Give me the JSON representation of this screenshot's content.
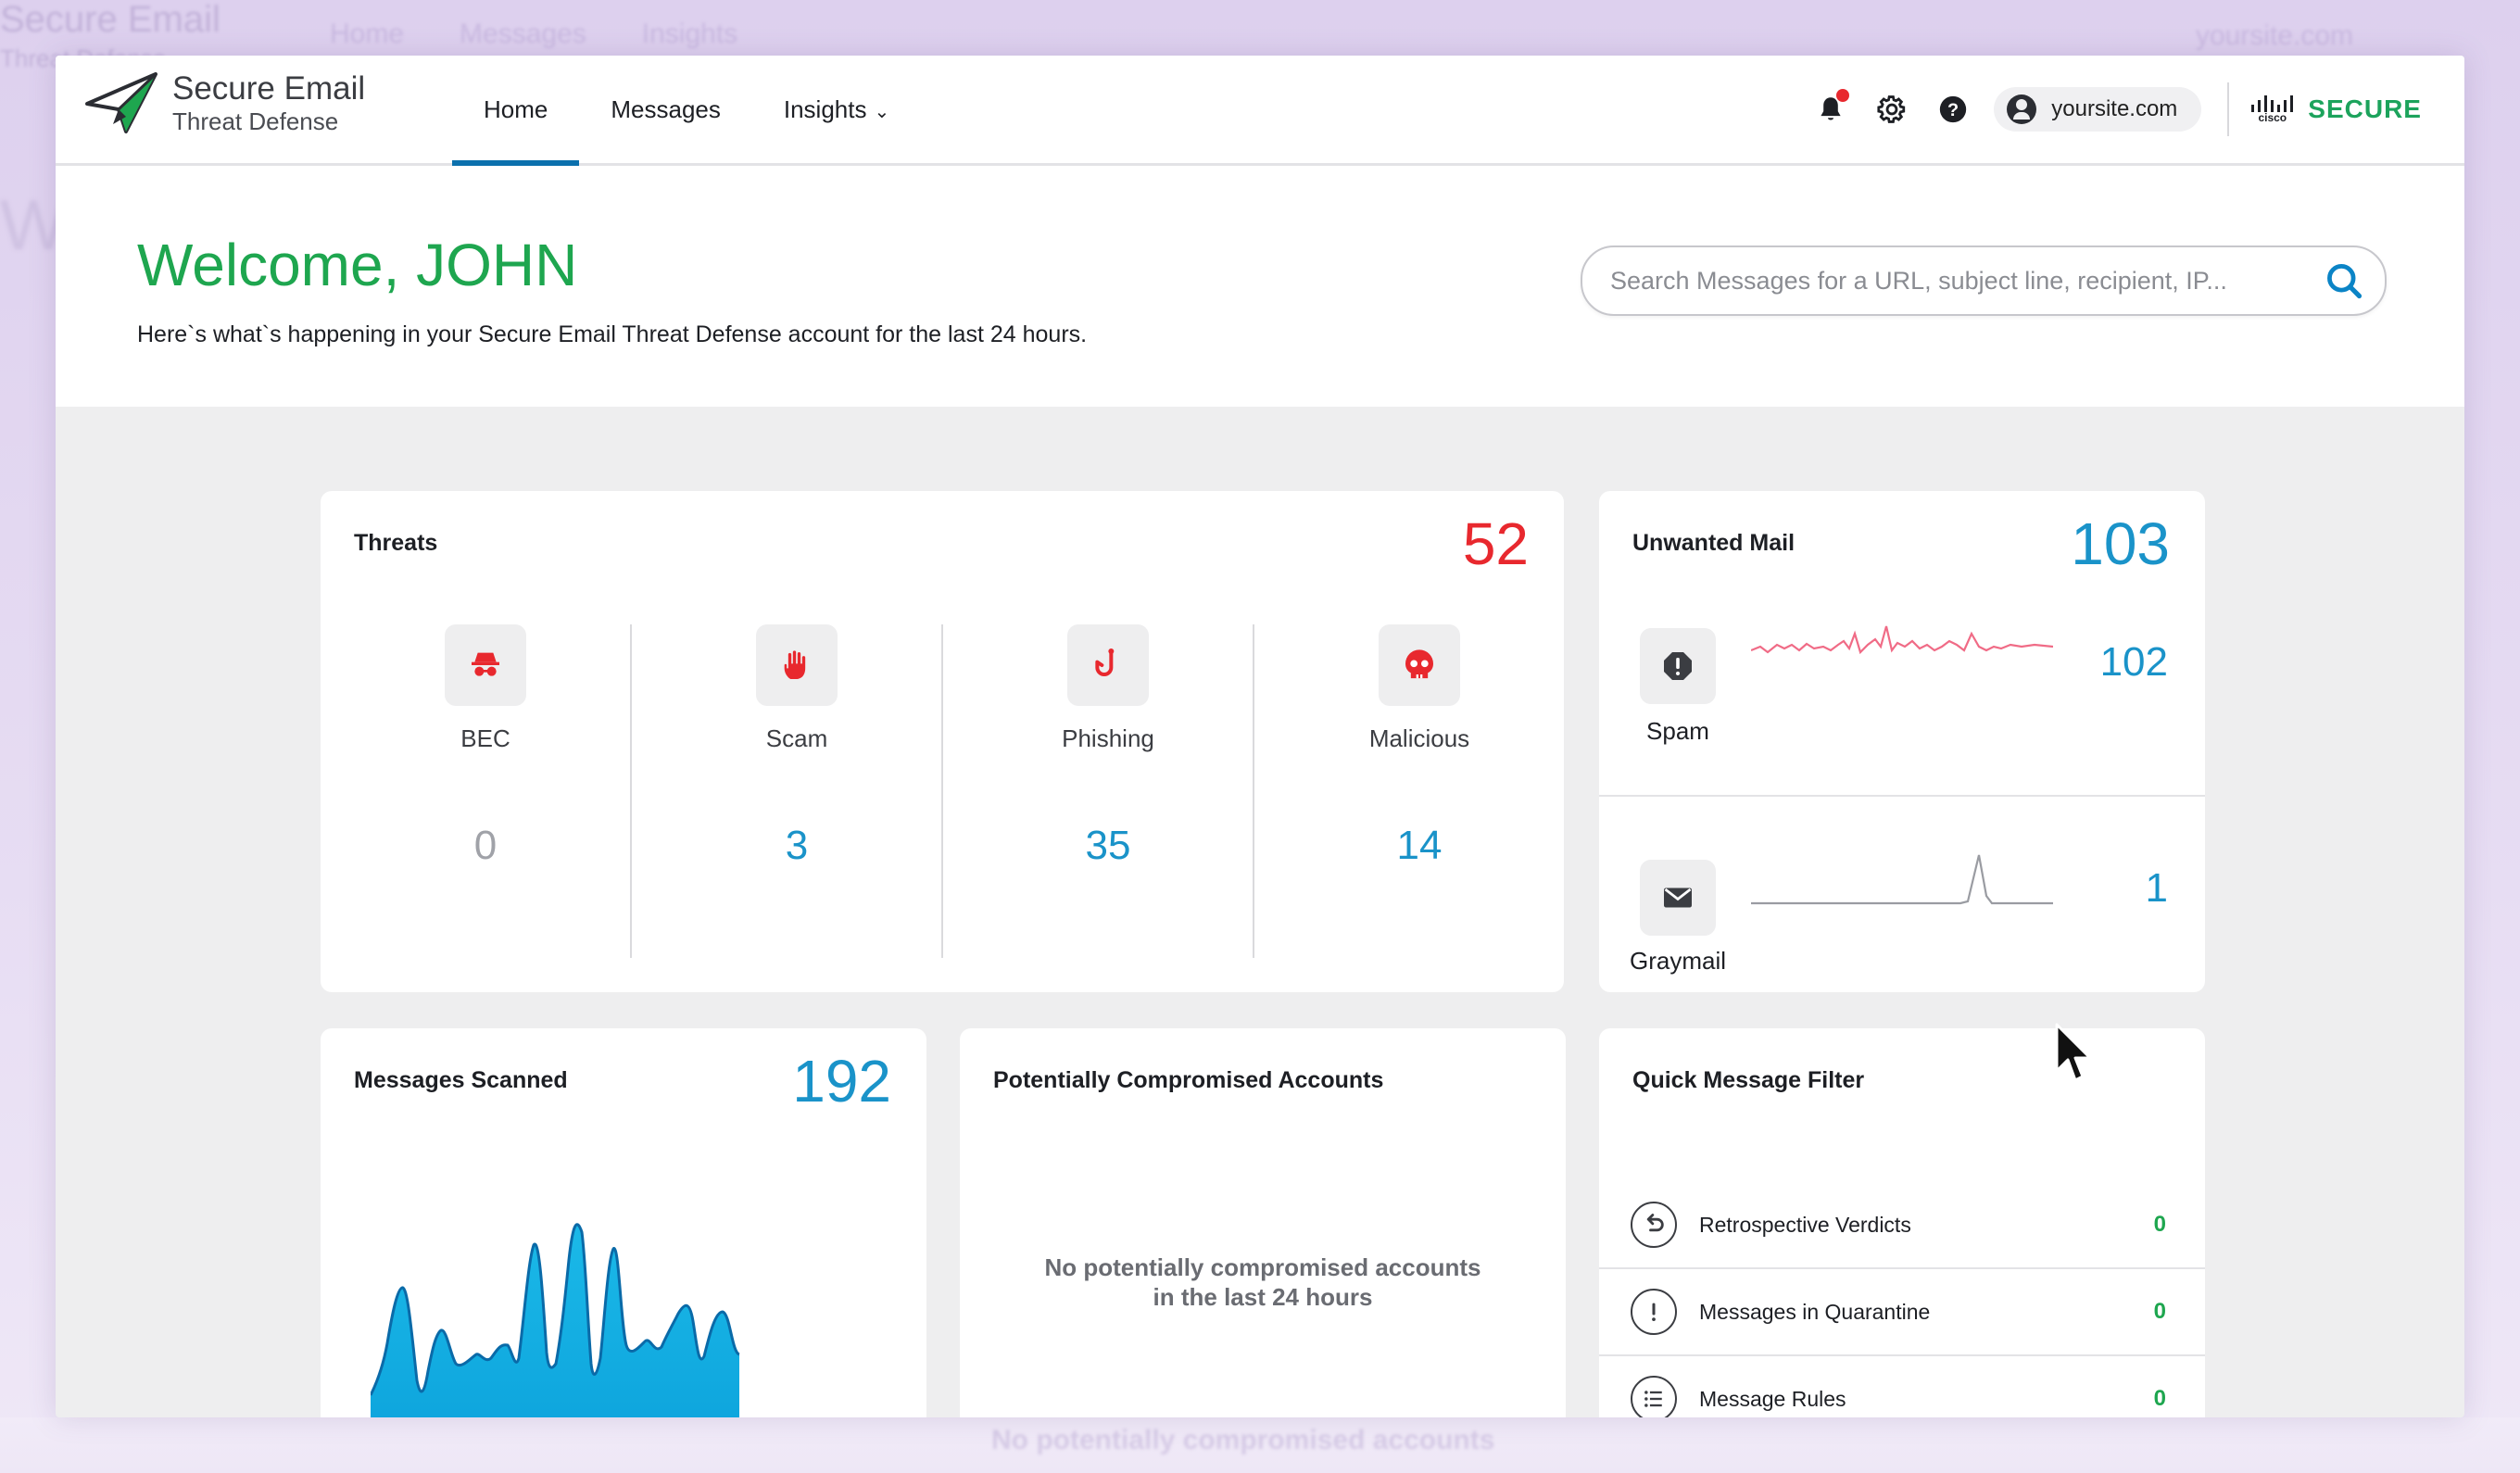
{
  "header": {
    "brand_title": "Secure Email",
    "brand_subtitle": "Threat Defense",
    "nav": [
      "Home",
      "Messages",
      "Insights"
    ],
    "active_nav": "Home",
    "domain": "yoursite.com",
    "vendor": "SECURE",
    "vendor_mark": "cisco"
  },
  "welcome": {
    "title": "Welcome, JOHN",
    "subtitle": "Here`s what`s happening in your Secure Email Threat Defense account for the last 24 hours."
  },
  "search": {
    "placeholder": "Search Messages for a URL, subject line, recipient, IP..."
  },
  "threats": {
    "title": "Threats",
    "total": "52",
    "items": [
      {
        "label": "BEC",
        "value": "0",
        "icon": "spy-icon"
      },
      {
        "label": "Scam",
        "value": "3",
        "icon": "hand-icon"
      },
      {
        "label": "Phishing",
        "value": "35",
        "icon": "fishhook-icon"
      },
      {
        "label": "Malicious",
        "value": "14",
        "icon": "skull-icon"
      }
    ]
  },
  "unwanted": {
    "title": "Unwanted Mail",
    "total": "103",
    "spam": {
      "label": "Spam",
      "value": "102",
      "icon": "shield-alert-icon"
    },
    "graymail": {
      "label": "Graymail",
      "value": "1",
      "icon": "envelope-icon"
    }
  },
  "scanned": {
    "title": "Messages Scanned",
    "total": "192"
  },
  "compromised": {
    "title": "Potentially Compromised Accounts",
    "empty_line1": "No potentially compromised accounts",
    "empty_line2": "in the last 24 hours"
  },
  "quick_filter": {
    "title": "Quick Message Filter",
    "items": [
      {
        "label": "Retrospective Verdicts",
        "value": "0",
        "icon": "undo-icon"
      },
      {
        "label": "Messages in Quarantine",
        "value": "0",
        "icon": "exclamation-icon"
      },
      {
        "label": "Message Rules",
        "value": "0",
        "icon": "list-icon"
      }
    ]
  },
  "colors": {
    "brand_green": "#1ea64f",
    "threat_red": "#e8282e",
    "count_blue": "#1a93c9",
    "nav_active": "#0b70ad"
  }
}
